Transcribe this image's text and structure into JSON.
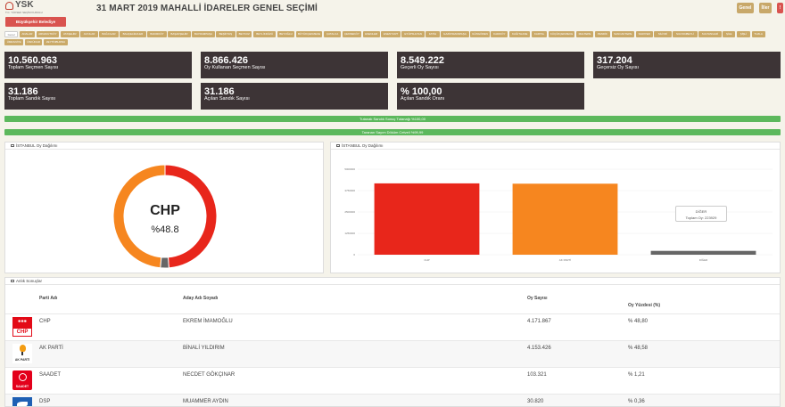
{
  "header": {
    "logo_text": "YSK",
    "logo_sub": "T.C. YÜKSEK SEÇİM KURULU",
    "title": "31 MART 2019 MAHALLİ İDARELER GENEL SEÇİMİ",
    "genel_label": "Genel",
    "iller_label": "İller",
    "warn_label": "!"
  },
  "election_type_button": "Büyükşehir Belediye Başkanlığı",
  "districts": [
    "Genel",
    "ADALAR",
    "ARNAVUTKÖY",
    "ATAŞEHİR",
    "AVCILAR",
    "BAĞCILAR",
    "BAHÇELİEVLER",
    "BAKIRKÖY",
    "BAŞAKŞEHİR",
    "BAYRAMPAŞA",
    "BEŞİKTAŞ",
    "BEYKOZ",
    "BEYLİKDÜZÜ",
    "BEYOĞLU",
    "BÜYÜKÇEKMECE",
    "ÇATALCA",
    "ÇEKMEKÖY",
    "ESENLER",
    "ESENYURT",
    "EYÜPSULTAN",
    "FATİH",
    "GAZİOSMANPAŞA",
    "GÜNGÖREN",
    "KADIKÖY",
    "KAĞITHANE",
    "KARTAL",
    "KÜÇÜKÇEKMECE",
    "MALTEPE",
    "PENDİK",
    "SANCAKTEPE",
    "SARIYER",
    "SİLİVRİ",
    "SULTANBEYLİ",
    "SULTANGAZİ",
    "ŞİLE",
    "ŞİŞLİ",
    "TUZLA",
    "ÜMRANİYE",
    "ÜSKÜDAR",
    "ZEYTİNBURNU"
  ],
  "stats": [
    {
      "value": "10.560.963",
      "label": "Toplam Seçmen Sayısı"
    },
    {
      "value": "8.866.426",
      "label": "Oy Kullanan Seçmen Sayısı"
    },
    {
      "value": "8.549.222",
      "label": "Geçerli Oy Sayısı"
    },
    {
      "value": "317.204",
      "label": "Geçersiz Oy Sayısı"
    },
    {
      "value": "31.186",
      "label": "Toplam Sandık Sayısı"
    },
    {
      "value": "31.186",
      "label": "Açılan Sandık Sayısı"
    },
    {
      "value": "% 100,00",
      "label": "Açılan Sandık Oranı"
    }
  ],
  "progress": [
    {
      "label": "Tutanak Sandık Sonuç Tutanağı %100,00",
      "value": 100
    },
    {
      "label": "Taranan Sayım Döküm Cetveli %99,99",
      "value": 99.99
    }
  ],
  "donut_panel": {
    "title": "İSTANBUL Oy Dağılımı",
    "center_party": "CHP",
    "center_pct": "%48.8",
    "colors": {
      "chp": "#e8261b",
      "akp": "#f6861f",
      "other": "#666666"
    },
    "shares": {
      "chp": 48.8,
      "akp": 48.58,
      "other": 2.62
    }
  },
  "bar_panel": {
    "title": "İSTANBUL Oy Dağılımı",
    "tooltip_title": "DİĞER",
    "tooltip_value": "Toplam Oy: 223929"
  },
  "chart_data": {
    "type": "bar",
    "categories": [
      "CHP",
      "AK PARTİ",
      "DİĞER"
    ],
    "values": [
      4171867,
      4153426,
      223929
    ],
    "colors": [
      "#e8261b",
      "#f6861f",
      "#666666"
    ],
    "ylim": [
      0,
      5000000
    ],
    "yticks": [
      "0",
      "1250000",
      "2500000",
      "3750000",
      "5000000"
    ]
  },
  "results": {
    "title": "Anlık Sonuçlar",
    "headers": {
      "party": "Parti Adı",
      "candidate": "Aday Adı Soyadı",
      "votes": "Oy Sayısı",
      "pct": "Oy Yüzdesi (%)"
    },
    "rows": [
      {
        "logo": "chp-logo-icon",
        "logo_text": "CHP",
        "party": "CHP",
        "candidate": "EKREM İMAMOĞLU",
        "votes": "4.171.867",
        "pct": "% 48,80"
      },
      {
        "logo": "akp-logo-icon",
        "logo_text": "AK PARTİ",
        "party": "AK PARTİ",
        "candidate": "BİNALİ YILDIRIM",
        "votes": "4.153.426",
        "pct": "% 48,58"
      },
      {
        "logo": "saadet-logo-icon",
        "logo_text": "SAADET",
        "party": "SAADET",
        "candidate": "NECDET GÖKÇINAR",
        "votes": "103.321",
        "pct": "% 1,21"
      },
      {
        "logo": "dsp-logo-icon",
        "logo_text": "",
        "party": "DSP",
        "candidate": "MUAMMER AYDIN",
        "votes": "30.820",
        "pct": "% 0,36"
      }
    ]
  }
}
